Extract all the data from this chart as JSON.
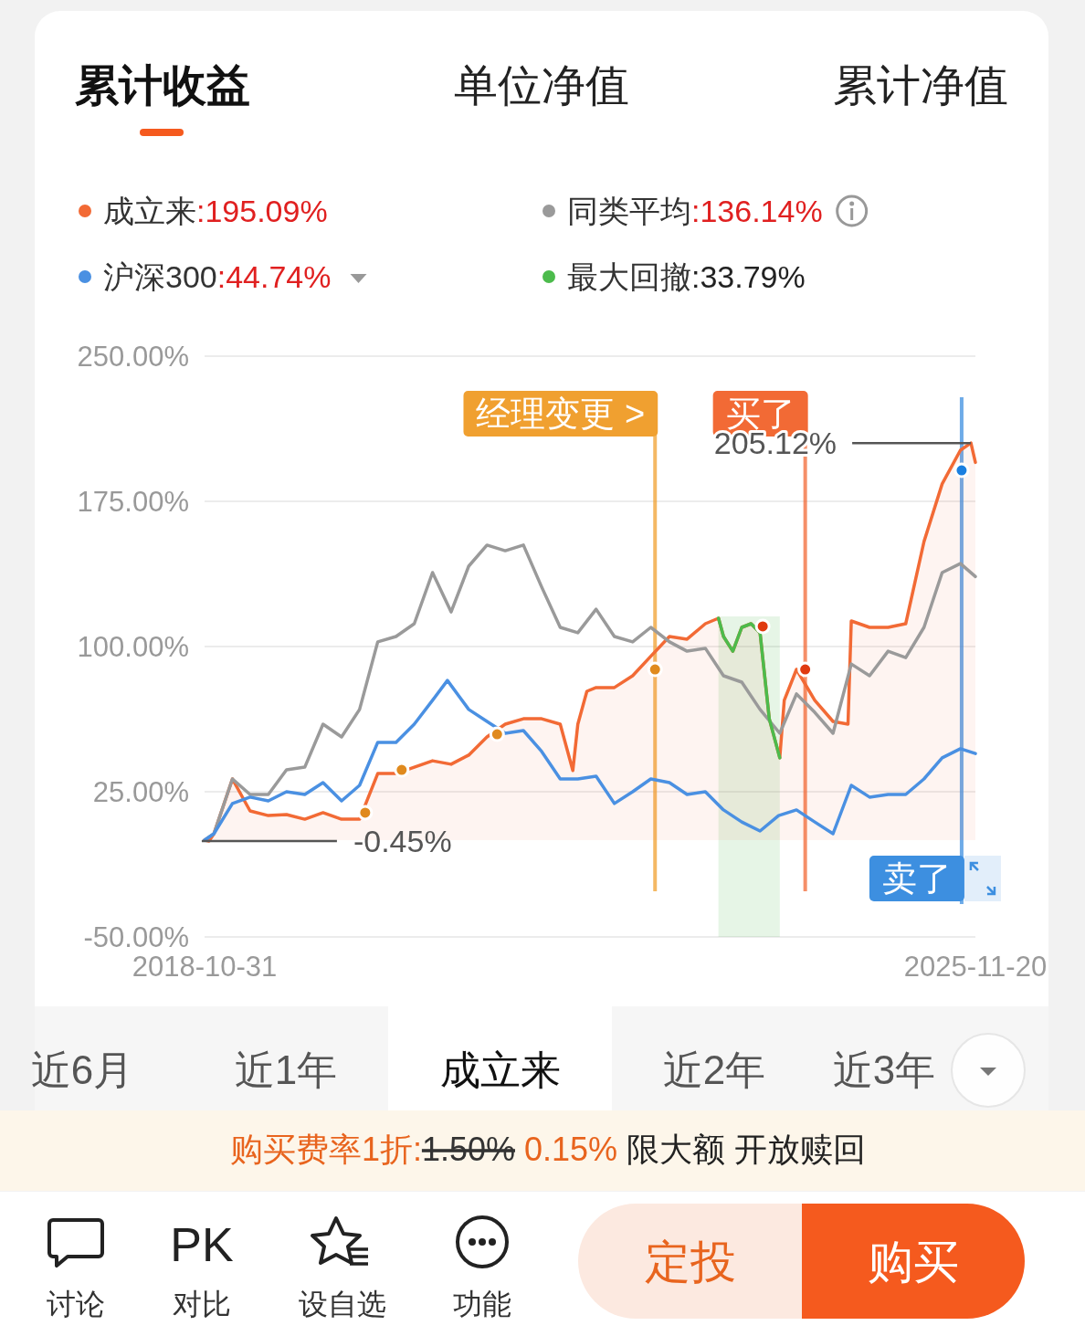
{
  "chart_data": {
    "type": "line",
    "title": "累计收益",
    "xlim": [
      "2018-10-31",
      "2025-11-20"
    ],
    "xticks": [
      "2018-10-31",
      "2025-11-20"
    ],
    "ylim": [
      -50,
      250
    ],
    "yticks": [
      {
        "value": -50,
        "label": "-50.00%"
      },
      {
        "value": 25,
        "label": "25.00%"
      },
      {
        "value": 100,
        "label": "100.00%"
      },
      {
        "value": 175,
        "label": "175.00%"
      },
      {
        "value": 250,
        "label": "250.00%"
      }
    ],
    "grid": "y",
    "legend": "top",
    "series": [
      {
        "name": "成立来",
        "type": "area",
        "color": "#f26a35",
        "x": [
          "2018-10-31",
          "2018-11-15",
          "2018-12",
          "2019-02",
          "2019-04",
          "2019-06",
          "2019-08",
          "2019-10",
          "2019-12",
          "2020-02",
          "2020-04",
          "2020-06",
          "2020-08",
          "2020-10",
          "2020-12",
          "2021-02",
          "2021-04",
          "2021-06",
          "2021-08",
          "2021-10",
          "2021-12",
          "2022-02",
          "2022-03-15",
          "2022-04",
          "2022-05",
          "2022-06",
          "2022-08",
          "2022-10",
          "2022-12",
          "2023-02",
          "2023-04",
          "2023-06",
          "2023-07-15",
          "2023-08",
          "2023-09",
          "2023-10",
          "2023-11",
          "2023-12",
          "2024-01",
          "2024-02-05",
          "2024-02-20",
          "2024-04",
          "2024-06",
          "2024-08",
          "2024-09-20",
          "2024-10",
          "2024-12",
          "2025-02",
          "2025-04",
          "2025-06",
          "2025-08",
          "2025-10",
          "2025-11-05",
          "2025-11-20"
        ],
        "values": [
          0,
          -0.45,
          3.3,
          31.6,
          15.1,
          12.7,
          13.2,
          10.8,
          14.2,
          10.8,
          10.8,
          34.4,
          34.4,
          37.7,
          41.0,
          39.2,
          43.9,
          53.3,
          59.9,
          62.7,
          62.7,
          59.9,
          36,
          59.9,
          76.9,
          78.8,
          78.8,
          84.9,
          95,
          105.2,
          103.8,
          111.8,
          114.6,
          105.2,
          97.6,
          109.9,
          111.8,
          107.1,
          62.7,
          42.5,
          72.2,
          88.2,
          72.2,
          61.3,
          59.9,
          113.2,
          109.9,
          109.9,
          111.8,
          154.2,
          184.0,
          201.4,
          205.12,
          195.09
        ]
      },
      {
        "name": "同类平均",
        "color": "#9a9a9a",
        "x": [
          "2018-10-31",
          "2018-12",
          "2019-02",
          "2019-04",
          "2019-06",
          "2019-08",
          "2019-10",
          "2019-12",
          "2020-02",
          "2020-04",
          "2020-06",
          "2020-08",
          "2020-10",
          "2020-12",
          "2021-02",
          "2021-04",
          "2021-06",
          "2021-08",
          "2021-10",
          "2021-12",
          "2022-02",
          "2022-04",
          "2022-06",
          "2022-08",
          "2022-10",
          "2022-12",
          "2023-02",
          "2023-04",
          "2023-06",
          "2023-08",
          "2023-10",
          "2023-12",
          "2024-02-05",
          "2024-04",
          "2024-06",
          "2024-08",
          "2024-10",
          "2024-12",
          "2025-02",
          "2025-04",
          "2025-06",
          "2025-08",
          "2025-10",
          "2025-11-20"
        ],
        "values": [
          0,
          3.3,
          31.6,
          23.6,
          23.6,
          36.3,
          37.7,
          59.9,
          53.3,
          67.5,
          102.4,
          105.2,
          111.8,
          138.2,
          117.9,
          141.5,
          152.4,
          149.5,
          152.4,
          130.7,
          109.9,
          107.1,
          119.3,
          105.2,
          102.4,
          109.9,
          102.4,
          97.6,
          99.1,
          84.9,
          81.6,
          67.5,
          55.2,
          75.5,
          66.0,
          55.2,
          91.0,
          84.9,
          97.6,
          94.3,
          109.9,
          138.2,
          142.9,
          136.14
        ]
      },
      {
        "name": "沪深300",
        "color": "#4a90e2",
        "x": [
          "2018-10-31",
          "2018-12",
          "2019-02",
          "2019-04",
          "2019-06",
          "2019-08",
          "2019-10",
          "2019-12",
          "2020-02",
          "2020-04",
          "2020-06",
          "2020-08",
          "2020-10",
          "2020-12",
          "2021-01-20",
          "2021-04",
          "2021-06",
          "2021-08",
          "2021-10",
          "2021-12",
          "2022-02",
          "2022-04",
          "2022-06",
          "2022-08",
          "2022-10",
          "2022-12",
          "2023-02",
          "2023-04",
          "2023-06",
          "2023-08",
          "2023-10",
          "2023-12",
          "2024-02",
          "2024-04",
          "2024-06",
          "2024-08",
          "2024-10",
          "2024-12",
          "2025-02",
          "2025-04",
          "2025-06",
          "2025-08",
          "2025-10",
          "2025-11-20"
        ],
        "values": [
          0,
          3.3,
          18.9,
          22.2,
          20.3,
          25.0,
          23.6,
          29.7,
          20.3,
          28.3,
          50.5,
          50.5,
          59.9,
          72.2,
          82.5,
          67.5,
          61.3,
          55.2,
          56.6,
          45.8,
          31.6,
          31.6,
          33.0,
          18.9,
          25.0,
          31.6,
          29.7,
          23.6,
          25.0,
          15.6,
          9.4,
          4.7,
          12.7,
          15.6,
          9.4,
          3.3,
          28.3,
          22.2,
          23.6,
          23.6,
          31.6,
          42.5,
          47.2,
          44.74
        ]
      },
      {
        "name": "最大回撤",
        "color": "#4cbb4c",
        "x": [
          "2023-07-15",
          "2023-08",
          "2023-09",
          "2023-10",
          "2023-11",
          "2023-12",
          "2024-01",
          "2024-02-05"
        ],
        "values": [
          114.6,
          105.2,
          97.6,
          109.9,
          111.8,
          107.1,
          62.7,
          42.5
        ]
      },
      {
        "type": "scatter",
        "marker": "circle",
        "x": [
          "2020-04-20",
          "2020-08-20",
          "2021-07-05",
          "2022-12-15",
          "2023-12-10",
          "2024-04-30",
          "2025-10-05"
        ],
        "values": [
          14.2,
          36.3,
          54.7,
          88.2,
          110.4,
          88.2,
          191.0
        ],
        "colors": [
          "#e08a1e",
          "#e08a1e",
          "#e08a1e",
          "#e08a1e",
          "#e03a10",
          "#e03a10",
          "#1a7fe0"
        ]
      }
    ],
    "bands": [
      {
        "axis": "x",
        "from": "2023-07-15",
        "to": "2024-02-05",
        "color": "#4cbb4c"
      }
    ],
    "ref_lines": [
      {
        "axis": "x",
        "value": "2022-12-15",
        "label": "经理变更 >",
        "color": "#f0a030"
      },
      {
        "axis": "x",
        "value": "2024-04-30",
        "label": "买了",
        "color": "#f26a35"
      },
      {
        "axis": "x",
        "value": "2025-10-05",
        "label": "卖了",
        "color": "#3d8fe0"
      }
    ],
    "annotations": [
      "单位净值",
      "累计净值",
      ":195.09%",
      ":136.14%",
      ":44.74%",
      ":33.79%",
      "近6月",
      "近1年",
      "成立来",
      "近2年",
      "近3年",
      "购买费率1折:",
      "1.50%",
      "0.15%",
      "限大额 开放赎回",
      "讨论",
      "PK",
      "对比",
      "设自选",
      "功能",
      "定投",
      "购买",
      {
        "text": "205.12%",
        "x": "2025-11-05",
        "y": 205.12
      },
      {
        "text": "-0.45%",
        "x": "2018-11-15",
        "y": -0.45
      }
    ]
  }
}
